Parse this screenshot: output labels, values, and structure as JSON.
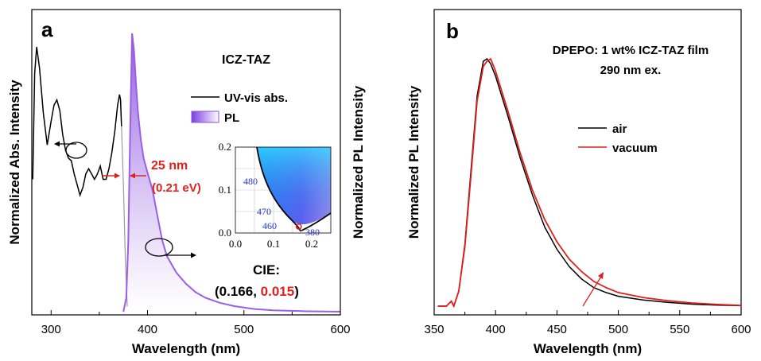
{
  "colors": {
    "abs_line": "#000000",
    "pl_line": "#9a5fe6",
    "pl_fill": "#b58cf0",
    "vacuum_line": "#e0201b",
    "air_line": "#000000",
    "annotation_red": "#e0201b",
    "cie_tick": "#1f36c9",
    "grey_abs_tail": "#9a9a9a"
  },
  "chart_data": [
    {
      "type": "line",
      "panel_label": "a",
      "title": "ICZ-TAZ",
      "xlabel": "Wavelength (nm)",
      "ylabel": "Normalized Abs. Intensity",
      "ylabel_right": "Normalized PL Intensity",
      "xlim": [
        280,
        600
      ],
      "ylim": [
        0,
        1.05
      ],
      "xticks": [
        300,
        400,
        500,
        600
      ],
      "xtick_labels": [
        "300",
        "400",
        "500",
        "600"
      ],
      "legend": [
        {
          "label": "UV-vis abs.",
          "style": "line"
        },
        {
          "label": "PL",
          "style": "fill"
        }
      ],
      "annotations": {
        "fwhm_value": "25 nm",
        "fwhm_energy": "(0.21 eV)",
        "cie_title": "CIE:",
        "cie_open": "(",
        "cie_x": "0.166",
        "cie_sep": ", ",
        "cie_y": "0.015",
        "cie_close": ")"
      },
      "series": [
        {
          "name": "UV-vis abs.",
          "x": [
            281,
            283,
            285,
            288,
            292,
            296,
            300,
            303,
            306,
            309,
            312,
            315,
            318,
            321,
            324,
            327,
            330,
            333,
            336,
            339,
            342,
            345,
            348,
            351,
            354,
            357,
            360,
            363,
            366,
            369,
            371,
            372,
            373,
            375,
            377,
            379
          ],
          "y": [
            0.5,
            0.9,
            1.0,
            0.92,
            0.75,
            0.63,
            0.72,
            0.78,
            0.8,
            0.76,
            0.67,
            0.61,
            0.58,
            0.57,
            0.52,
            0.48,
            0.44,
            0.47,
            0.52,
            0.54,
            0.52,
            0.5,
            0.52,
            0.55,
            0.5,
            0.5,
            0.54,
            0.6,
            0.68,
            0.78,
            0.82,
            0.8,
            0.7,
            0.48,
            0.2,
            0.02
          ]
        },
        {
          "name": "PL",
          "x": [
            375,
            378,
            380,
            382,
            384,
            386,
            388,
            390,
            393,
            396,
            400,
            405,
            410,
            415,
            420,
            430,
            440,
            450,
            460,
            475,
            490,
            510,
            530,
            560,
            600
          ],
          "y": [
            0.0,
            0.05,
            0.25,
            0.65,
            1.0,
            0.94,
            0.82,
            0.72,
            0.62,
            0.55,
            0.5,
            0.44,
            0.35,
            0.26,
            0.2,
            0.14,
            0.1,
            0.07,
            0.05,
            0.032,
            0.02,
            0.01,
            0.005,
            0.002,
            0.0
          ]
        }
      ],
      "inset": {
        "type": "cie",
        "xlim": [
          0.0,
          0.25
        ],
        "ylim": [
          0.0,
          0.2
        ],
        "xticks": [
          "0.0",
          "0.1",
          "0.2"
        ],
        "yticks": [
          "0.0",
          "0.1",
          "0.2"
        ],
        "wavelength_labels": [
          "480",
          "470",
          "460",
          "380"
        ],
        "point": {
          "x": 0.166,
          "y": 0.015
        }
      }
    },
    {
      "type": "line",
      "panel_label": "b",
      "title": "DPEPO: 1 wt% ICZ-TAZ film",
      "subtitle": "290 nm ex.",
      "xlabel": "Wavelength (nm)",
      "ylabel": "Normalized PL Intensity",
      "xlim": [
        350,
        600
      ],
      "ylim": [
        0,
        1.05
      ],
      "xticks": [
        350,
        400,
        450,
        500,
        550,
        600
      ],
      "xtick_labels": [
        "350",
        "400",
        "450",
        "500",
        "550",
        "600"
      ],
      "legend": [
        {
          "label": "air"
        },
        {
          "label": "vacuum"
        }
      ],
      "series": [
        {
          "name": "air",
          "x": [
            353,
            360,
            364,
            366,
            370,
            375,
            380,
            385,
            390,
            393,
            396,
            400,
            405,
            410,
            420,
            430,
            440,
            450,
            460,
            470,
            480,
            490,
            500,
            520,
            540,
            560,
            580,
            600
          ],
          "y": [
            0.0,
            0.0,
            0.02,
            0.0,
            0.06,
            0.25,
            0.55,
            0.85,
            0.99,
            1.0,
            0.98,
            0.93,
            0.85,
            0.77,
            0.6,
            0.45,
            0.32,
            0.23,
            0.16,
            0.11,
            0.075,
            0.055,
            0.04,
            0.025,
            0.015,
            0.008,
            0.004,
            0.002
          ]
        },
        {
          "name": "vacuum",
          "x": [
            353,
            360,
            364,
            366,
            370,
            375,
            380,
            385,
            390,
            393,
            396,
            400,
            405,
            410,
            420,
            430,
            440,
            450,
            460,
            470,
            480,
            490,
            500,
            520,
            540,
            560,
            580,
            600
          ],
          "y": [
            0.0,
            0.0,
            0.02,
            0.0,
            0.06,
            0.24,
            0.53,
            0.83,
            0.97,
            0.99,
            1.0,
            0.95,
            0.87,
            0.79,
            0.62,
            0.47,
            0.35,
            0.26,
            0.19,
            0.14,
            0.1,
            0.075,
            0.055,
            0.035,
            0.022,
            0.013,
            0.007,
            0.003
          ]
        }
      ]
    }
  ]
}
